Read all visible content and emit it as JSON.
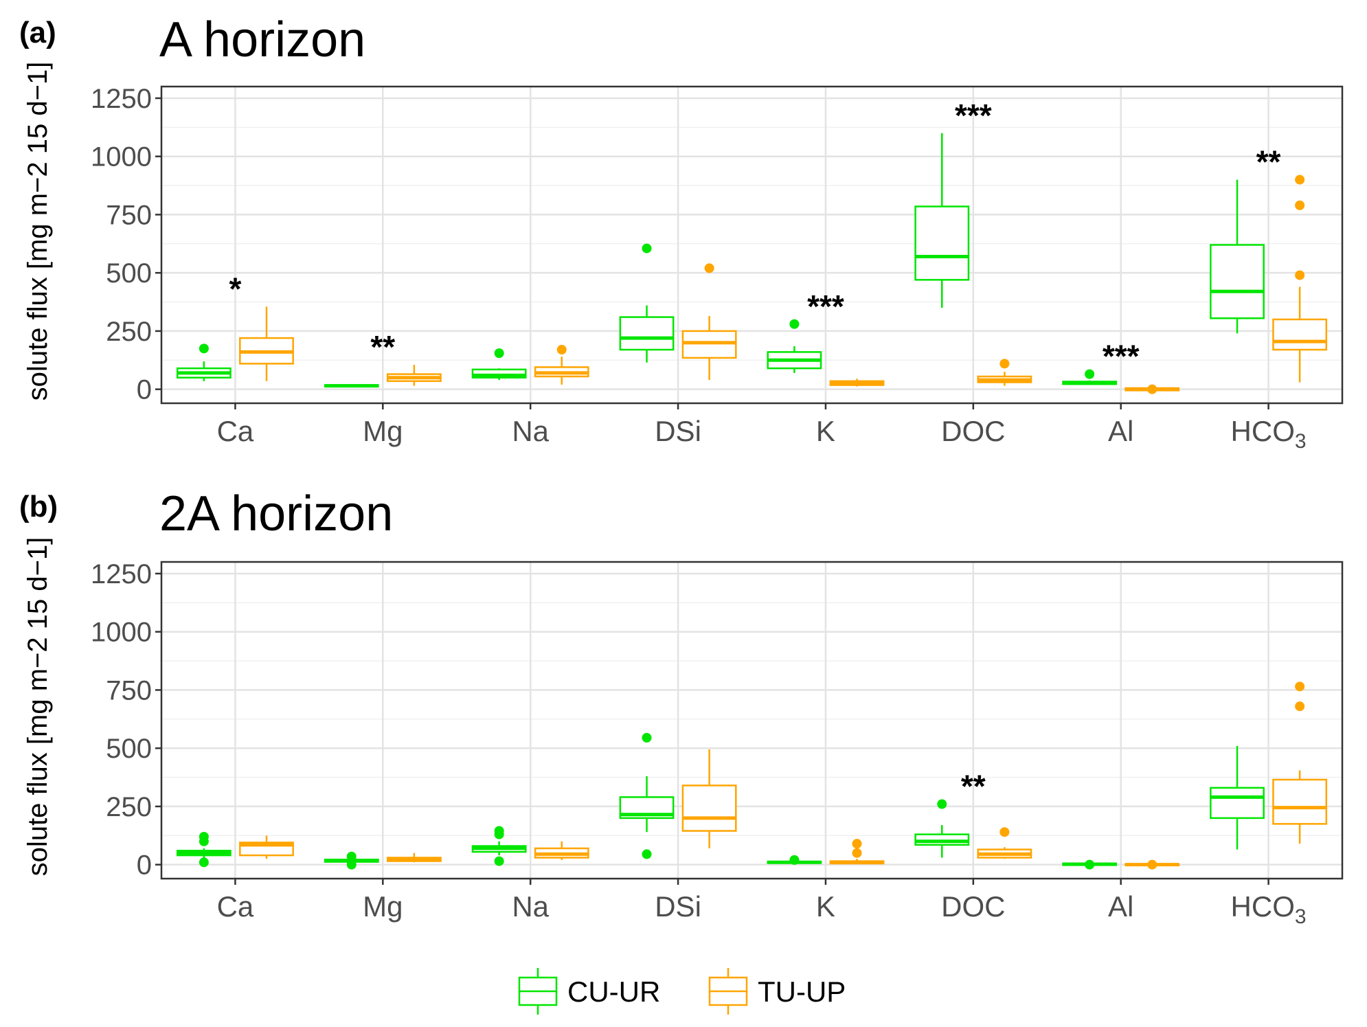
{
  "legend": {
    "position": "bottom",
    "items": [
      {
        "label": "CU-UR",
        "color": "#00E600"
      },
      {
        "label": "TU-UP",
        "color": "#FFA500"
      }
    ]
  },
  "chart_data": [
    {
      "type": "boxplot",
      "panel_label": "(a)",
      "title": "A horizon",
      "ylabel": "solute flux [mg m−2 15 d−1]",
      "ylim": [
        -60,
        1300
      ],
      "yticks": [
        0,
        250,
        500,
        750,
        1000,
        1250
      ],
      "grid": true,
      "categories": [
        "Ca",
        "Mg",
        "Na",
        "DSi",
        "K",
        "DOC",
        "Al",
        "HCO3"
      ],
      "category_labels": [
        {
          "base": "Ca",
          "sub": ""
        },
        {
          "base": "Mg",
          "sub": ""
        },
        {
          "base": "Na",
          "sub": ""
        },
        {
          "base": "DSi",
          "sub": ""
        },
        {
          "base": "K",
          "sub": ""
        },
        {
          "base": "DOC",
          "sub": ""
        },
        {
          "base": "Al",
          "sub": ""
        },
        {
          "base": "HCO",
          "sub": "3"
        }
      ],
      "significance": [
        "*",
        "**",
        "",
        "",
        "***",
        "***",
        "***",
        "**"
      ],
      "series": [
        {
          "name": "CU-UR",
          "boxes": [
            {
              "lw": 35,
              "q1": 50,
              "med": 70,
              "q3": 90,
              "uw": 120,
              "out": [
                175
              ]
            },
            {
              "lw": 8,
              "q1": 12,
              "med": 15,
              "q3": 18,
              "uw": 22,
              "out": []
            },
            {
              "lw": 40,
              "q1": 50,
              "med": 60,
              "q3": 85,
              "uw": 90,
              "out": [
                155
              ]
            },
            {
              "lw": 115,
              "q1": 170,
              "med": 220,
              "q3": 310,
              "uw": 360,
              "out": [
                605
              ]
            },
            {
              "lw": 70,
              "q1": 90,
              "med": 125,
              "q3": 160,
              "uw": 185,
              "out": [
                280
              ]
            },
            {
              "lw": 350,
              "q1": 470,
              "med": 570,
              "q3": 785,
              "uw": 1100,
              "out": []
            },
            {
              "lw": 20,
              "q1": 22,
              "med": 28,
              "q3": 33,
              "uw": 38,
              "out": [
                65
              ]
            },
            {
              "lw": 240,
              "q1": 305,
              "med": 420,
              "q3": 620,
              "uw": 900,
              "out": []
            }
          ]
        },
        {
          "name": "TU-UP",
          "boxes": [
            {
              "lw": 35,
              "q1": 110,
              "med": 160,
              "q3": 220,
              "uw": 355,
              "out": []
            },
            {
              "lw": 15,
              "q1": 35,
              "med": 50,
              "q3": 65,
              "uw": 105,
              "out": []
            },
            {
              "lw": 20,
              "q1": 55,
              "med": 70,
              "q3": 95,
              "uw": 140,
              "out": [
                170
              ]
            },
            {
              "lw": 40,
              "q1": 135,
              "med": 200,
              "q3": 250,
              "uw": 315,
              "out": [
                520
              ]
            },
            {
              "lw": 12,
              "q1": 18,
              "med": 25,
              "q3": 35,
              "uw": 45,
              "out": []
            },
            {
              "lw": 15,
              "q1": 30,
              "med": 40,
              "q3": 55,
              "uw": 75,
              "out": [
                110
              ]
            },
            {
              "lw": -10,
              "q1": -5,
              "med": 0,
              "q3": 5,
              "uw": 10,
              "out": [
                0
              ]
            },
            {
              "lw": 30,
              "q1": 170,
              "med": 205,
              "q3": 300,
              "uw": 440,
              "out": [
                490,
                790,
                900
              ]
            }
          ]
        }
      ]
    },
    {
      "type": "boxplot",
      "panel_label": "(b)",
      "title": "2A horizon",
      "ylabel": "solute flux [mg m−2 15 d−1]",
      "ylim": [
        -60,
        1300
      ],
      "yticks": [
        0,
        250,
        500,
        750,
        1000,
        1250
      ],
      "grid": true,
      "categories": [
        "Ca",
        "Mg",
        "Na",
        "DSi",
        "K",
        "DOC",
        "Al",
        "HCO3"
      ],
      "category_labels": [
        {
          "base": "Ca",
          "sub": ""
        },
        {
          "base": "Mg",
          "sub": ""
        },
        {
          "base": "Na",
          "sub": ""
        },
        {
          "base": "DSi",
          "sub": ""
        },
        {
          "base": "K",
          "sub": ""
        },
        {
          "base": "DOC",
          "sub": ""
        },
        {
          "base": "Al",
          "sub": ""
        },
        {
          "base": "HCO",
          "sub": "3"
        }
      ],
      "significance": [
        "",
        "",
        "",
        "",
        "",
        "**",
        "",
        ""
      ],
      "series": [
        {
          "name": "CU-UR",
          "boxes": [
            {
              "lw": 30,
              "q1": 40,
              "med": 50,
              "q3": 60,
              "uw": 70,
              "out": [
                10,
                100,
                120
              ]
            },
            {
              "lw": 10,
              "q1": 12,
              "med": 18,
              "q3": 22,
              "uw": 28,
              "out": [
                0,
                35
              ]
            },
            {
              "lw": 40,
              "q1": 55,
              "med": 70,
              "q3": 80,
              "uw": 100,
              "out": [
                15,
                130,
                145
              ]
            },
            {
              "lw": 140,
              "q1": 200,
              "med": 215,
              "q3": 290,
              "uw": 380,
              "out": [
                45,
                545
              ]
            },
            {
              "lw": 5,
              "q1": 7,
              "med": 10,
              "q3": 13,
              "uw": 16,
              "out": [
                20
              ]
            },
            {
              "lw": 30,
              "q1": 85,
              "med": 100,
              "q3": 130,
              "uw": 170,
              "out": [
                260
              ]
            },
            {
              "lw": -5,
              "q1": -2,
              "med": 2,
              "q3": 5,
              "uw": 8,
              "out": [
                0
              ]
            },
            {
              "lw": 65,
              "q1": 200,
              "med": 290,
              "q3": 330,
              "uw": 510,
              "out": []
            }
          ]
        },
        {
          "name": "TU-UP",
          "boxes": [
            {
              "lw": 25,
              "q1": 40,
              "med": 85,
              "q3": 95,
              "uw": 125,
              "out": []
            },
            {
              "lw": 10,
              "q1": 15,
              "med": 22,
              "q3": 30,
              "uw": 50,
              "out": []
            },
            {
              "lw": 20,
              "q1": 30,
              "med": 45,
              "q3": 70,
              "uw": 100,
              "out": []
            },
            {
              "lw": 70,
              "q1": 145,
              "med": 200,
              "q3": 340,
              "uw": 495,
              "out": []
            },
            {
              "lw": 2,
              "q1": 5,
              "med": 10,
              "q3": 15,
              "uw": 25,
              "out": [
                50,
                90
              ]
            },
            {
              "lw": 25,
              "q1": 30,
              "med": 45,
              "q3": 65,
              "uw": 75,
              "out": [
                140
              ]
            },
            {
              "lw": -8,
              "q1": -3,
              "med": 0,
              "q3": 3,
              "uw": 8,
              "out": [
                0
              ]
            },
            {
              "lw": 90,
              "q1": 175,
              "med": 245,
              "q3": 365,
              "uw": 405,
              "out": [
                680,
                765
              ]
            }
          ]
        }
      ]
    }
  ]
}
